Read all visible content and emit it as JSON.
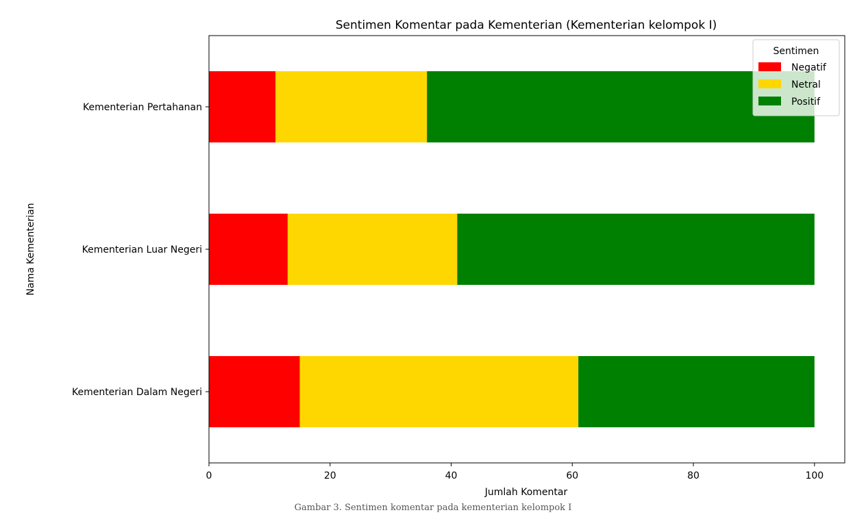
{
  "chart_data": {
    "type": "bar",
    "orientation": "horizontal",
    "stacked": true,
    "title": "Sentimen Komentar pada Kementerian (Kementerian kelompok I)",
    "xlabel": "Jumlah Komentar",
    "ylabel": "Nama Kementerian",
    "xlim": [
      0,
      105
    ],
    "xticks": [
      0,
      20,
      40,
      60,
      80,
      100
    ],
    "categories": [
      "Kementerian Pertahanan",
      "Kementerian Luar Negeri",
      "Kementerian Dalam Negeri"
    ],
    "series": [
      {
        "name": "Negatif",
        "color": "#ff0000",
        "values": [
          11,
          13,
          15
        ]
      },
      {
        "name": "Netral",
        "color": "#ffd700",
        "values": [
          25,
          28,
          46
        ]
      },
      {
        "name": "Positif",
        "color": "#008000",
        "values": [
          64,
          59,
          39
        ]
      }
    ],
    "legend": {
      "title": "Sentimen",
      "placement": "top-right"
    },
    "grid": false
  },
  "caption": "Gambar 3. Sentimen komentar pada kementerian kelompok I"
}
